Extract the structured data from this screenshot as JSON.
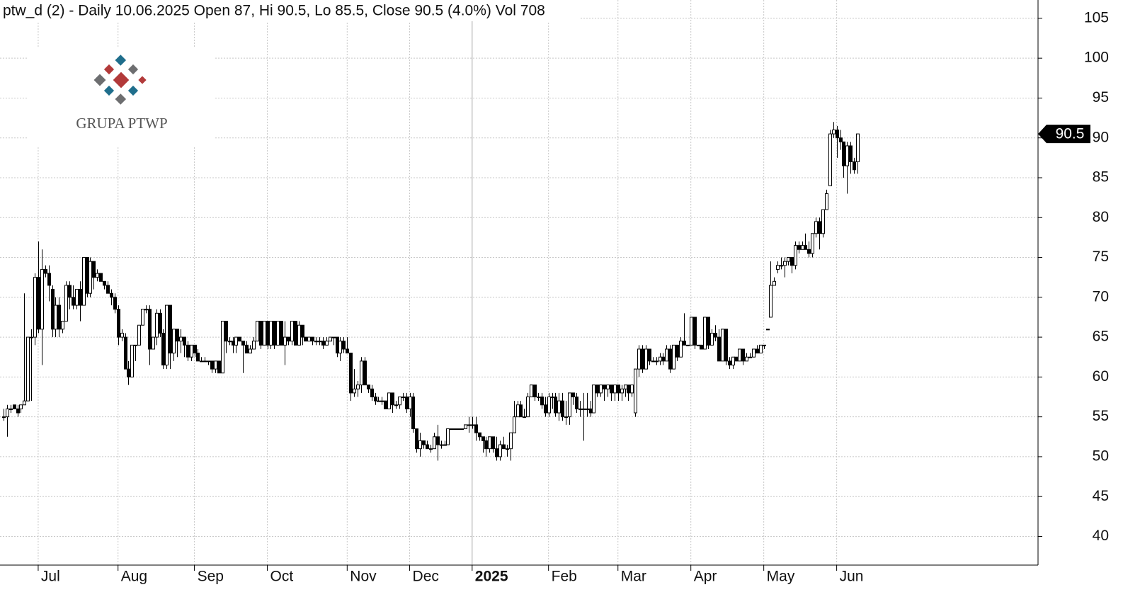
{
  "chart_data": {
    "type": "candlestick",
    "title": "ptw_d (2) - Daily 10.06.2025 Open 87, Hi 90.5, Lo 85.5, Close 90.5 (4.0%) Vol 708",
    "watermark": "GRUPA PTWP",
    "up_color": "#ffffff",
    "down_color": "#000000",
    "outline_color": "#000000",
    "grid": true,
    "ylim": [
      36.4,
      107.3
    ],
    "yticks": [
      40,
      45,
      50,
      55,
      60,
      65,
      70,
      75,
      80,
      85,
      90,
      95,
      100,
      105
    ],
    "xlim": [
      -1,
      298
    ],
    "xticks": [
      {
        "value": 10,
        "label": "Jul"
      },
      {
        "value": 33,
        "label": "Aug"
      },
      {
        "value": 55,
        "label": "Sep"
      },
      {
        "value": 76,
        "label": "Oct"
      },
      {
        "value": 99,
        "label": "Nov"
      },
      {
        "value": 117,
        "label": "Dec"
      },
      {
        "value": 135,
        "label": "2025",
        "bold": true
      },
      {
        "value": 157,
        "label": "Feb"
      },
      {
        "value": 177,
        "label": "Mar"
      },
      {
        "value": 198,
        "label": "Apr"
      },
      {
        "value": 219,
        "label": "May"
      },
      {
        "value": 240,
        "label": "Jun"
      }
    ],
    "ohlc": [
      [
        55,
        56,
        54.5,
        55
      ],
      [
        55,
        56.5,
        52.5,
        56
      ],
      [
        56,
        56.5,
        55.5,
        56
      ],
      [
        56.5,
        56.5,
        56,
        56
      ],
      [
        56,
        56.5,
        55,
        55.5
      ],
      [
        56,
        56.5,
        55.5,
        56.5
      ],
      [
        56.5,
        70.5,
        56.5,
        57
      ],
      [
        57,
        65,
        57,
        65
      ],
      [
        65,
        66,
        57,
        65
      ],
      [
        65,
        73,
        64,
        72.5
      ],
      [
        72.5,
        77,
        65.5,
        66
      ],
      [
        66,
        76,
        61.5,
        73.5
      ],
      [
        73.5,
        74,
        72.5,
        73
      ],
      [
        73,
        74,
        69.5,
        71.5
      ],
      [
        71,
        71.5,
        65,
        66
      ],
      [
        66,
        70,
        65,
        69
      ],
      [
        69,
        70,
        65,
        66
      ],
      [
        66,
        67,
        65.5,
        67
      ],
      [
        67,
        72,
        67,
        71.5
      ],
      [
        71.5,
        72,
        68.5,
        70
      ],
      [
        70,
        71.5,
        68.5,
        69
      ],
      [
        69,
        71,
        68.5,
        71
      ],
      [
        71,
        72,
        67,
        69
      ],
      [
        69,
        75,
        69,
        75
      ],
      [
        75,
        75,
        70,
        70.5
      ],
      [
        70.5,
        75,
        70,
        74.5
      ],
      [
        74.5,
        74.5,
        71,
        72.5
      ],
      [
        72.5,
        73.5,
        72,
        73
      ],
      [
        73,
        73,
        72,
        72
      ],
      [
        72,
        72,
        71,
        71.5
      ],
      [
        71.5,
        72,
        70.5,
        70.5
      ],
      [
        70.5,
        71,
        69,
        70
      ],
      [
        70,
        70.5,
        68,
        68.5
      ],
      [
        68.5,
        69,
        64,
        65
      ],
      [
        65,
        66,
        64.5,
        65.5
      ],
      [
        65,
        65.5,
        61,
        61
      ],
      [
        61,
        62,
        59,
        60
      ],
      [
        60,
        64,
        60,
        64
      ],
      [
        64,
        64,
        62,
        64
      ],
      [
        64,
        66.5,
        64,
        66.5
      ],
      [
        66.5,
        68.5,
        66.5,
        68.5
      ],
      [
        68.5,
        69,
        68,
        68.5
      ],
      [
        68.5,
        69,
        61.5,
        63.5
      ],
      [
        63.5,
        65,
        63.5,
        65
      ],
      [
        65,
        68.5,
        64,
        68
      ],
      [
        68,
        68.5,
        65,
        65.5
      ],
      [
        65.5,
        66,
        61,
        61.5
      ],
      [
        61.5,
        69,
        61,
        69
      ],
      [
        69,
        69,
        61,
        63
      ],
      [
        63,
        66,
        62,
        66
      ],
      [
        66,
        66,
        62.5,
        64.5
      ],
      [
        64.5,
        66,
        63,
        65
      ],
      [
        65,
        65,
        62.5,
        64
      ],
      [
        64,
        64.5,
        62,
        62.5
      ],
      [
        62.5,
        64,
        62,
        64
      ],
      [
        64,
        64,
        62.5,
        63
      ],
      [
        63,
        63.5,
        62,
        62
      ],
      [
        62,
        62.5,
        62,
        62
      ],
      [
        62,
        62.5,
        62,
        62
      ],
      [
        62,
        62,
        61.5,
        62
      ],
      [
        62,
        62,
        60.5,
        61
      ],
      [
        61,
        62,
        60.5,
        62
      ],
      [
        62,
        62,
        60.5,
        60.5
      ],
      [
        60.5,
        67,
        60.5,
        67
      ],
      [
        67,
        67,
        63,
        64.5
      ],
      [
        64.5,
        65,
        64,
        64.5
      ],
      [
        64.5,
        65,
        63,
        64
      ],
      [
        64,
        65,
        63,
        65
      ],
      [
        65,
        65,
        64.5,
        64.5
      ],
      [
        64.5,
        64.5,
        60.5,
        64
      ],
      [
        64,
        64.5,
        63,
        63
      ],
      [
        63,
        64,
        63,
        63.5
      ],
      [
        63.5,
        65,
        63.5,
        64.5
      ],
      [
        64.5,
        67,
        64.5,
        67
      ],
      [
        67,
        67,
        63.5,
        64
      ],
      [
        64,
        67,
        64,
        67
      ],
      [
        67,
        67,
        63.5,
        64
      ],
      [
        64,
        67,
        63.5,
        67
      ],
      [
        67,
        67,
        63.5,
        64
      ],
      [
        64,
        67,
        64,
        67
      ],
      [
        67,
        67,
        64,
        64
      ],
      [
        64,
        67,
        61.5,
        65
      ],
      [
        65,
        65,
        64,
        64.5
      ],
      [
        64.5,
        67,
        64,
        67
      ],
      [
        67,
        67,
        64,
        64
      ],
      [
        64,
        67,
        64,
        66.5
      ],
      [
        66.5,
        66.5,
        64,
        65
      ],
      [
        65,
        65,
        64.5,
        64.5
      ],
      [
        64.5,
        65,
        64.5,
        65
      ],
      [
        65,
        65,
        64,
        64.5
      ],
      [
        64.5,
        65,
        64,
        64.5
      ],
      [
        64.5,
        65,
        64,
        64.5
      ],
      [
        64.5,
        65,
        63.5,
        64
      ],
      [
        64,
        65,
        64,
        64.5
      ],
      [
        64.5,
        65,
        64.5,
        65
      ],
      [
        65,
        65,
        64,
        65
      ],
      [
        65,
        65,
        62.5,
        63
      ],
      [
        63,
        65,
        62,
        64.5
      ],
      [
        64.5,
        65,
        63,
        63.5
      ],
      [
        63.5,
        65,
        63,
        63
      ],
      [
        63,
        63,
        57,
        58
      ],
      [
        58,
        61,
        57.5,
        58.5
      ],
      [
        58.5,
        59.5,
        57.5,
        59
      ],
      [
        59,
        62.5,
        58,
        62
      ],
      [
        62,
        62.5,
        59,
        59
      ],
      [
        59,
        59,
        58,
        58.5
      ],
      [
        58.5,
        59,
        57,
        57.5
      ],
      [
        57.5,
        58,
        56.5,
        57
      ],
      [
        57,
        57.5,
        57,
        57
      ],
      [
        57,
        57.5,
        56.5,
        57
      ],
      [
        57,
        57,
        56,
        56
      ],
      [
        56,
        58,
        56,
        58
      ],
      [
        58,
        58,
        55.5,
        56.5
      ],
      [
        56.5,
        57,
        56,
        56.5
      ],
      [
        56.5,
        57.5,
        56,
        57.5
      ],
      [
        57.5,
        58,
        57,
        57.5
      ],
      [
        57.5,
        58,
        55.5,
        56
      ],
      [
        56,
        58,
        55,
        57.5
      ],
      [
        57.5,
        58,
        53,
        53.5
      ],
      [
        53.5,
        53.5,
        50.5,
        51
      ],
      [
        51,
        53,
        50,
        52
      ],
      [
        52,
        52,
        51,
        51.5
      ],
      [
        51.5,
        52,
        51,
        51
      ],
      [
        51,
        51.5,
        50.5,
        51
      ],
      [
        51,
        53,
        51,
        52.5
      ],
      [
        52.5,
        54,
        49.5,
        51.5
      ],
      [
        51.5,
        52,
        51,
        51.5
      ],
      [
        51.5,
        52,
        51.5,
        51.5
      ],
      [
        51.5,
        53.5,
        51.5,
        53.5
      ],
      [
        53.5,
        53.5,
        53.5,
        53.5
      ],
      [
        53.5,
        53.5,
        53.5,
        53.5
      ],
      [
        53.5,
        53.5,
        53.5,
        53.5
      ],
      [
        53.5,
        53.5,
        53.5,
        53.5
      ],
      [
        53.5,
        54,
        53.5,
        54
      ],
      [
        54,
        55,
        53,
        54
      ],
      [
        54,
        55,
        53.5,
        54
      ],
      [
        54,
        55,
        52,
        53
      ],
      [
        53,
        53,
        52,
        52.5
      ],
      [
        52.5,
        52.5,
        50.5,
        52
      ],
      [
        52,
        52.5,
        50,
        51
      ],
      [
        51,
        52.5,
        50.5,
        52.5
      ],
      [
        52.5,
        52.5,
        50.5,
        51
      ],
      [
        51,
        52.5,
        49.5,
        50
      ],
      [
        50,
        52,
        49.5,
        51.5
      ],
      [
        51.5,
        52.5,
        51,
        51
      ],
      [
        51,
        51.5,
        50,
        51
      ],
      [
        51,
        53,
        49.5,
        53
      ],
      [
        53,
        57,
        53,
        55
      ],
      [
        55,
        57,
        55,
        56.5
      ],
      [
        56.5,
        57,
        55,
        55
      ],
      [
        55,
        56,
        55,
        55
      ],
      [
        55,
        58,
        55,
        57.5
      ],
      [
        57.5,
        59,
        57.5,
        59
      ],
      [
        59,
        59,
        57,
        57.5
      ],
      [
        57.5,
        58,
        57,
        57.5
      ],
      [
        57.5,
        58,
        56,
        56.5
      ],
      [
        56.5,
        57.5,
        55,
        55.5
      ],
      [
        55.5,
        58,
        55,
        57.5
      ],
      [
        57.5,
        58,
        56,
        57.5
      ],
      [
        57.5,
        58,
        55,
        55.5
      ],
      [
        55.5,
        58,
        54.5,
        57
      ],
      [
        57,
        58,
        54.5,
        55
      ],
      [
        55,
        57,
        54,
        55
      ],
      [
        55,
        58,
        54,
        58
      ],
      [
        58,
        58,
        56.5,
        57.5
      ],
      [
        57.5,
        58,
        55.5,
        56
      ],
      [
        56,
        57,
        55,
        56
      ],
      [
        56,
        58,
        52,
        56
      ],
      [
        56,
        58,
        55,
        56
      ],
      [
        56,
        57,
        55,
        55.5
      ],
      [
        55.5,
        59,
        55.5,
        59
      ],
      [
        59,
        59,
        57.5,
        58
      ],
      [
        58,
        59,
        57.5,
        59
      ],
      [
        59,
        59,
        57,
        58.5
      ],
      [
        58.5,
        59,
        57.5,
        59
      ],
      [
        59,
        59,
        57,
        58
      ],
      [
        58,
        59,
        57,
        59
      ],
      [
        59,
        59,
        57,
        58
      ],
      [
        58,
        59,
        57,
        58.5
      ],
      [
        58.5,
        59,
        57.5,
        59
      ],
      [
        59,
        59,
        57,
        58
      ],
      [
        58,
        59,
        57.5,
        59
      ],
      [
        55.5,
        61,
        55,
        61
      ],
      [
        61,
        64,
        60,
        63.5
      ],
      [
        63.5,
        64,
        60.5,
        61
      ],
      [
        61,
        64,
        61,
        63.5
      ],
      [
        63.5,
        63.5,
        61.5,
        62
      ],
      [
        62,
        62.5,
        62,
        62
      ],
      [
        62,
        62.5,
        61.5,
        62
      ],
      [
        62,
        63,
        61.5,
        62.5
      ],
      [
        62.5,
        63,
        61.5,
        62
      ],
      [
        62,
        64,
        62,
        63.5
      ],
      [
        63.5,
        64,
        60.5,
        61
      ],
      [
        61,
        64,
        61,
        64
      ],
      [
        64,
        64,
        62,
        62.5
      ],
      [
        62.5,
        65,
        62.5,
        64.5
      ],
      [
        64.5,
        68,
        64,
        64
      ],
      [
        64,
        64,
        64,
        64
      ],
      [
        64,
        67.5,
        64,
        67.5
      ],
      [
        67.5,
        67.5,
        63.5,
        64
      ],
      [
        64,
        64,
        64,
        64
      ],
      [
        64,
        64,
        63.5,
        63.5
      ],
      [
        63.5,
        67.5,
        63.5,
        67.5
      ],
      [
        67.5,
        67.5,
        63.5,
        64
      ],
      [
        64,
        66,
        64,
        65.5
      ],
      [
        65.5,
        66.5,
        64.5,
        65
      ],
      [
        65,
        66,
        62,
        62
      ],
      [
        62,
        66,
        62,
        66
      ],
      [
        66,
        66,
        61.5,
        62
      ],
      [
        62,
        62.5,
        61,
        61.5
      ],
      [
        61.5,
        62.5,
        61,
        62.5
      ],
      [
        62.5,
        62.5,
        62,
        62
      ],
      [
        62,
        63.5,
        62,
        63.5
      ],
      [
        63.5,
        63.5,
        61.5,
        62
      ],
      [
        62,
        63,
        62,
        62.5
      ],
      [
        62.5,
        63,
        62.5,
        62.5
      ],
      [
        62.5,
        63.5,
        62.5,
        63.5
      ],
      [
        63.5,
        64,
        63,
        63
      ],
      [
        63,
        64,
        63,
        64
      ],
      [
        64,
        64,
        63.5,
        64
      ],
      [
        66,
        66,
        66,
        66
      ],
      [
        67.5,
        74.5,
        67.5,
        71.5
      ],
      [
        71.5,
        72.5,
        71.5,
        72
      ],
      [
        73.5,
        74.5,
        73,
        74
      ],
      [
        74,
        75,
        73.5,
        74
      ],
      [
        74,
        75,
        72.5,
        74.5
      ],
      [
        74.5,
        75,
        74,
        75
      ],
      [
        75,
        75,
        73,
        74
      ],
      [
        74,
        77,
        73.5,
        76.5
      ],
      [
        76.5,
        77,
        75.5,
        76
      ],
      [
        76,
        77,
        76,
        76.5
      ],
      [
        76.5,
        78,
        76,
        76
      ],
      [
        76,
        77,
        75,
        75.5
      ],
      [
        75.5,
        78,
        75,
        78
      ],
      [
        78,
        80,
        77.5,
        79.5
      ],
      [
        79.5,
        80,
        76,
        78
      ],
      [
        78,
        81,
        77.5,
        81
      ],
      [
        81,
        83.5,
        81,
        83
      ],
      [
        84,
        91,
        84,
        90.5
      ],
      [
        90.5,
        92,
        90,
        91
      ],
      [
        91,
        91.5,
        87.5,
        90
      ],
      [
        90,
        91,
        88.5,
        89.5
      ],
      [
        89.5,
        89.5,
        85,
        86.5
      ],
      [
        86.5,
        89.5,
        83,
        89
      ],
      [
        89,
        89.5,
        85.5,
        87
      ],
      [
        87,
        87.5,
        85.5,
        86
      ],
      [
        87,
        90.5,
        85.5,
        90.5
      ]
    ]
  }
}
